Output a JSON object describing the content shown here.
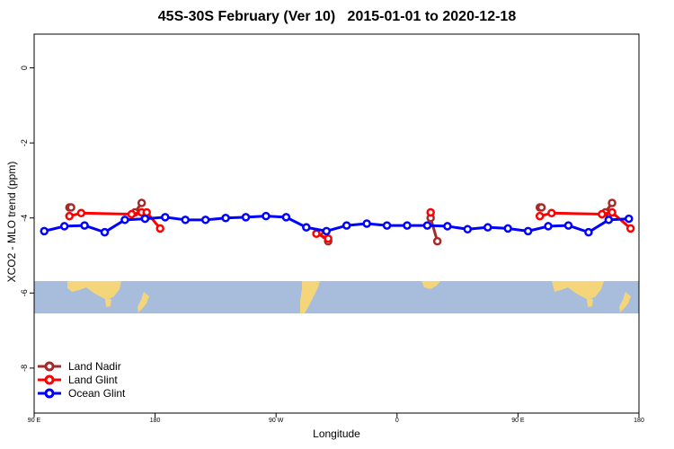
{
  "chart_data": {
    "type": "line",
    "title": "45S-30S February (Ver 10)   2015-01-01 to 2020-12-18",
    "xlabel": "Longitude",
    "ylabel": "XCO2 - MLO trend (ppm)",
    "xlim": [
      60,
      420
    ],
    "ylim": [
      -9.2,
      0.9
    ],
    "x_ticks": [
      {
        "value": 60,
        "label": "90 E"
      },
      {
        "value": 132,
        "label": "180"
      },
      {
        "value": 204,
        "label": "90 W"
      },
      {
        "value": 276,
        "label": "0"
      },
      {
        "value": 348,
        "label": "90 E"
      },
      {
        "value": 420,
        "label": "180"
      }
    ],
    "y_ticks": [
      0,
      -2,
      -4,
      -6,
      -8
    ],
    "grid": false,
    "legend_position": "bottom-left",
    "series": [
      {
        "name": "Land Nadir",
        "color": "#a52a2a",
        "segments": [
          [
            [
              81,
              -3.72
            ],
            [
              82,
              -3.72
            ]
          ],
          [
            [
              120,
              -3.85
            ],
            [
              124,
              -3.6
            ]
          ],
          [
            [
              233,
              -4.45
            ],
            [
              235,
              -4.62
            ]
          ],
          [
            [
              296,
              -4.0
            ],
            [
              300,
              -4.62
            ]
          ],
          [
            [
              361,
              -3.72
            ],
            [
              362,
              -3.72
            ]
          ],
          [
            [
              400,
              -3.85
            ],
            [
              404,
              -3.6
            ]
          ]
        ]
      },
      {
        "name": "Land Glint",
        "color": "#ff0000",
        "segments": [
          [
            [
              81,
              -3.95
            ],
            [
              88,
              -3.87
            ],
            [
              118,
              -3.9
            ],
            [
              124,
              -3.85
            ],
            [
              127,
              -3.85
            ],
            [
              135,
              -4.28
            ]
          ],
          [
            [
              228,
              -4.42
            ],
            [
              235,
              -4.55
            ]
          ],
          [
            [
              296,
              -3.85
            ]
          ],
          [
            [
              361,
              -3.95
            ],
            [
              368,
              -3.87
            ],
            [
              398,
              -3.9
            ],
            [
              404,
              -3.85
            ],
            [
              415,
              -4.28
            ]
          ]
        ]
      },
      {
        "name": "Ocean Glint",
        "color": "#0000ff",
        "segments": [
          [
            [
              66,
              -4.35
            ],
            [
              78,
              -4.22
            ],
            [
              90,
              -4.2
            ],
            [
              102,
              -4.38
            ],
            [
              114,
              -4.05
            ],
            [
              126,
              -4.02
            ],
            [
              138,
              -3.98
            ],
            [
              150,
              -4.05
            ],
            [
              162,
              -4.05
            ],
            [
              174,
              -4.0
            ],
            [
              186,
              -3.98
            ],
            [
              198,
              -3.95
            ],
            [
              210,
              -3.98
            ],
            [
              222,
              -4.25
            ],
            [
              234,
              -4.35
            ],
            [
              246,
              -4.2
            ],
            [
              258,
              -4.15
            ],
            [
              270,
              -4.2
            ],
            [
              282,
              -4.2
            ],
            [
              294,
              -4.2
            ],
            [
              306,
              -4.22
            ],
            [
              318,
              -4.3
            ],
            [
              330,
              -4.25
            ],
            [
              342,
              -4.28
            ],
            [
              354,
              -4.35
            ],
            [
              366,
              -4.22
            ],
            [
              378,
              -4.2
            ],
            [
              390,
              -4.38
            ],
            [
              402,
              -4.05
            ],
            [
              414,
              -4.02
            ]
          ]
        ]
      }
    ]
  },
  "map_strip": {
    "ocean_color": "#a8bcdc",
    "land_color": "#f5d57a"
  }
}
